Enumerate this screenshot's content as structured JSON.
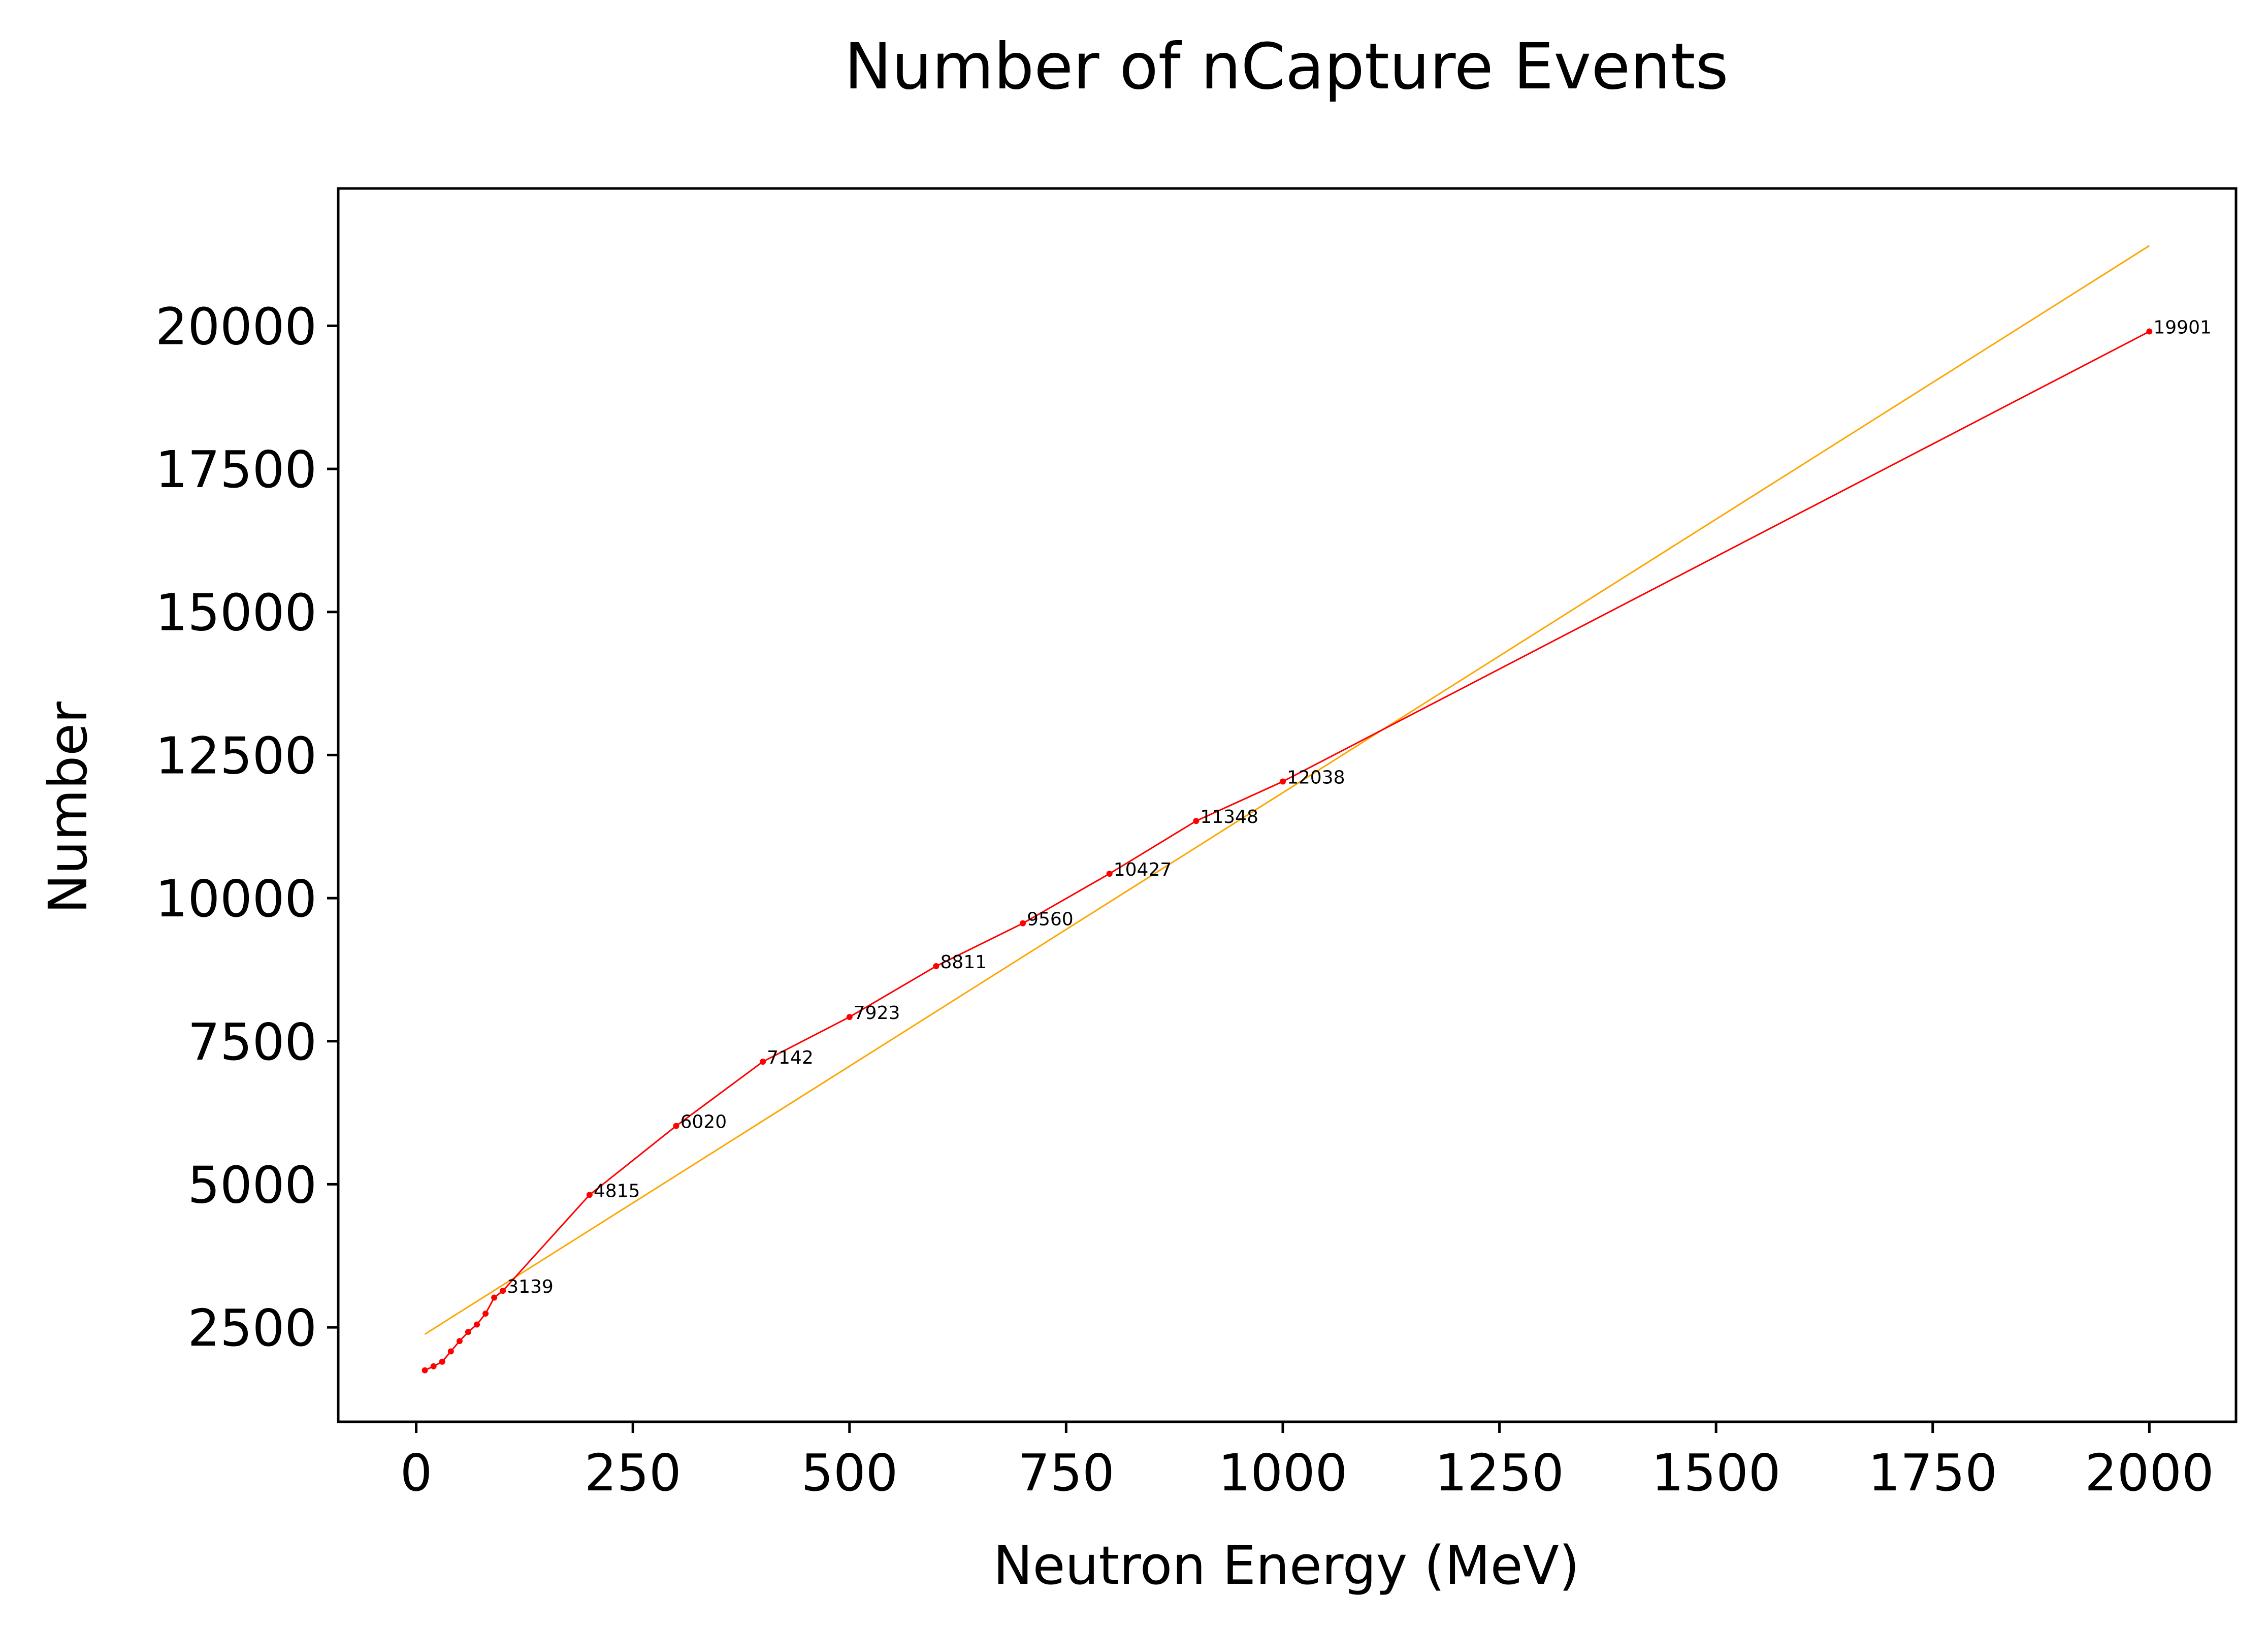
{
  "chart_data": {
    "type": "line",
    "title": "Number of nCapture Events",
    "xlabel": "Neutron Energy (MeV)",
    "ylabel": "Number",
    "xlim": [
      -90,
      2100
    ],
    "ylim": [
      850,
      22400
    ],
    "xticks": [
      0,
      250,
      500,
      750,
      1000,
      1250,
      1500,
      1750,
      2000
    ],
    "yticks": [
      2500,
      5000,
      7500,
      10000,
      12500,
      15000,
      17500,
      20000
    ],
    "grid": false,
    "series": [
      {
        "color": "#ff0000",
        "x": [
          10,
          20,
          30,
          40,
          50,
          60,
          70,
          80,
          90,
          100,
          200,
          300,
          400,
          500,
          600,
          700,
          800,
          900,
          1000,
          2000
        ],
        "y": [
          1750,
          1820,
          1900,
          2080,
          2260,
          2420,
          2550,
          2740,
          3020,
          3139,
          4815,
          6020,
          7142,
          7923,
          8811,
          9560,
          10427,
          11348,
          12038,
          19901
        ],
        "labeled_points": [
          {
            "x": 100,
            "y": 3139,
            "label": "3139"
          },
          {
            "x": 200,
            "y": 4815,
            "label": "4815"
          },
          {
            "x": 300,
            "y": 6020,
            "label": "6020"
          },
          {
            "x": 400,
            "y": 7142,
            "label": "7142"
          },
          {
            "x": 500,
            "y": 7923,
            "label": "7923"
          },
          {
            "x": 600,
            "y": 8811,
            "label": "8811"
          },
          {
            "x": 700,
            "y": 9560,
            "label": "9560"
          },
          {
            "x": 800,
            "y": 10427,
            "label": "10427"
          },
          {
            "x": 900,
            "y": 11348,
            "label": "11348"
          },
          {
            "x": 1000,
            "y": 12038,
            "label": "12038"
          },
          {
            "x": 2000,
            "y": 19901,
            "label": "19901"
          }
        ]
      },
      {
        "color": "#ffa500",
        "x": [
          10,
          2000
        ],
        "y": [
          2380,
          21400
        ]
      }
    ]
  }
}
